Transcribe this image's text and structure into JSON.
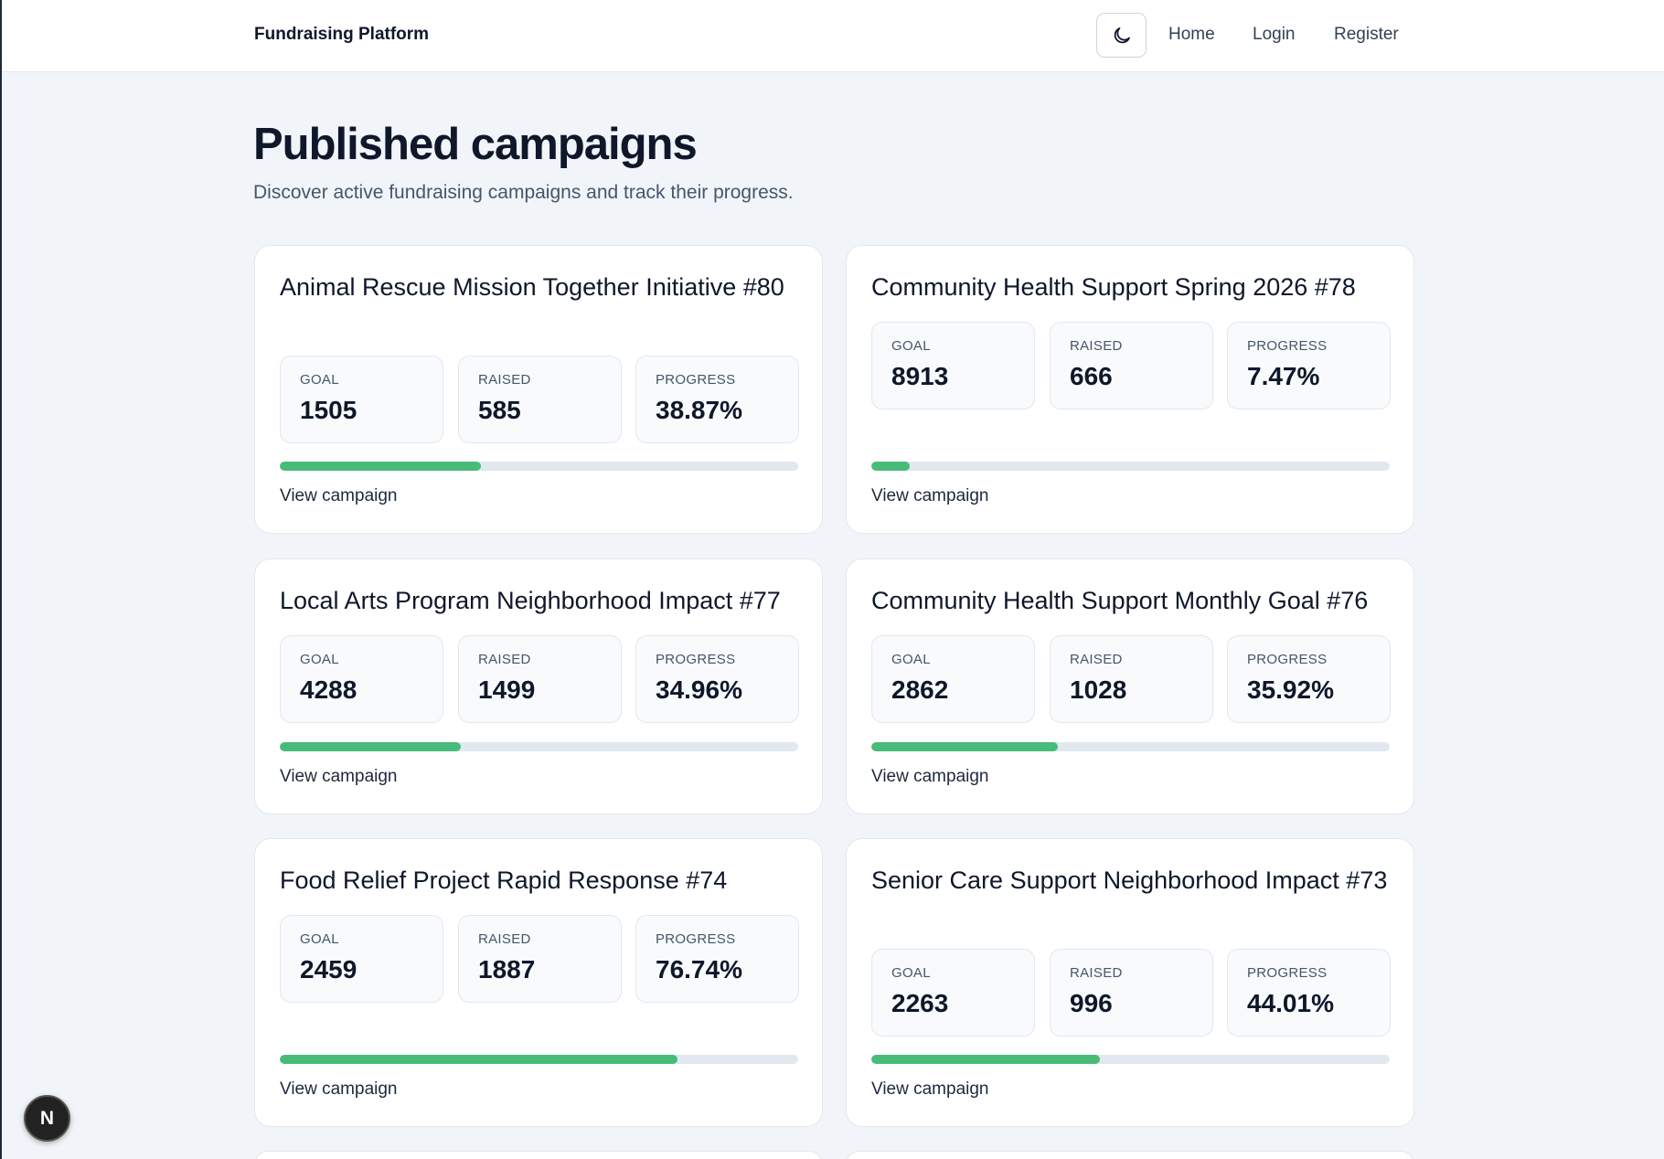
{
  "header": {
    "brand": "Fundraising Platform",
    "theme_toggle_icon": "moon-icon",
    "nav": {
      "home": "Home",
      "login": "Login",
      "register": "Register"
    }
  },
  "main": {
    "title": "Published campaigns",
    "subtitle": "Discover active fundraising campaigns and track their progress."
  },
  "labels": {
    "goal": "GOAL",
    "raised": "RAISED",
    "progress": "PROGRESS",
    "view": "View campaign"
  },
  "campaigns": [
    {
      "title": "Animal Rescue Mission Together Initiative #80",
      "goal": "1505",
      "raised": "585",
      "progress": "38.87%",
      "progress_value": 38.87
    },
    {
      "title": "Community Health Support Spring 2026 #78",
      "goal": "8913",
      "raised": "666",
      "progress": "7.47%",
      "progress_value": 7.47
    },
    {
      "title": "Local Arts Program Neighborhood Impact #77",
      "goal": "4288",
      "raised": "1499",
      "progress": "34.96%",
      "progress_value": 34.96
    },
    {
      "title": "Community Health Support Monthly Goal #76",
      "goal": "2862",
      "raised": "1028",
      "progress": "35.92%",
      "progress_value": 35.92
    },
    {
      "title": "Food Relief Project Rapid Response #74",
      "goal": "2459",
      "raised": "1887",
      "progress": "76.74%",
      "progress_value": 76.74
    },
    {
      "title": "Senior Care Support Neighborhood Impact #73",
      "goal": "2263",
      "raised": "996",
      "progress": "44.01%",
      "progress_value": 44.01
    }
  ],
  "colors": {
    "accent": "#48bb78",
    "track": "#e2e8f0",
    "background": "#f1f5f9"
  },
  "dev_badge": {
    "letter": "N",
    "icon": "nextjs-icon"
  }
}
